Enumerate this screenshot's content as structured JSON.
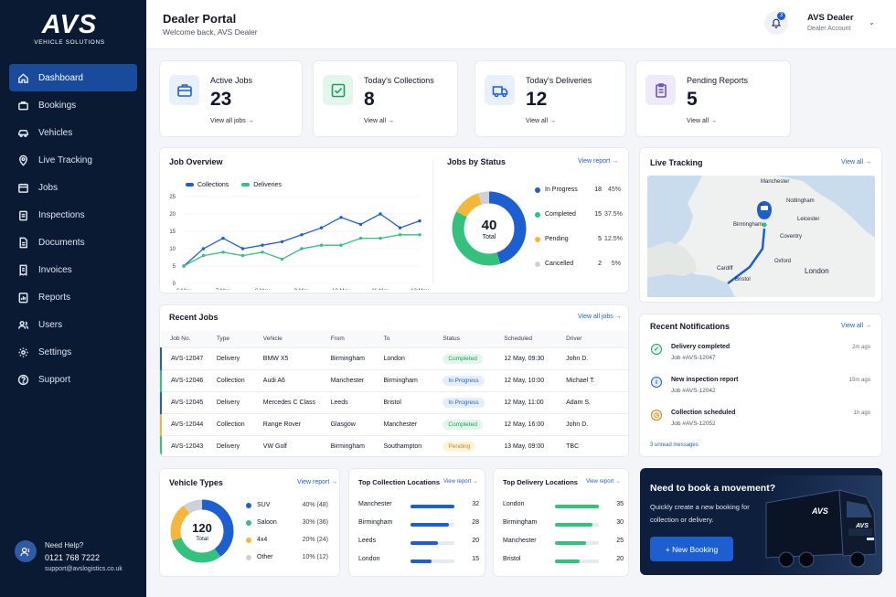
{
  "brand": {
    "logo_text": "AVS",
    "logo_sub": "VEHICLE SOLUTIONS"
  },
  "sidebar": {
    "items": [
      {
        "label": "Dashboard",
        "icon": "home-icon",
        "active": true
      },
      {
        "label": "Bookings",
        "icon": "briefcase-icon"
      },
      {
        "label": "Vehicles",
        "icon": "car-icon"
      },
      {
        "label": "Live Tracking",
        "icon": "map-pin-icon"
      },
      {
        "label": "Jobs",
        "icon": "calendar-icon"
      },
      {
        "label": "Inspections",
        "icon": "clipboard-icon"
      },
      {
        "label": "Documents",
        "icon": "document-icon"
      },
      {
        "label": "Invoices",
        "icon": "invoice-icon"
      },
      {
        "label": "Reports",
        "icon": "report-icon"
      },
      {
        "label": "Users",
        "icon": "users-icon"
      },
      {
        "label": "Settings",
        "icon": "gear-icon"
      },
      {
        "label": "Support",
        "icon": "help-circle-icon"
      }
    ],
    "help": {
      "title": "Need Help?",
      "phone": "0121 768 7222",
      "email": "support@avslogistics.co.uk"
    }
  },
  "header": {
    "title": "Dealer Portal",
    "subtitle": "Welcome back, AVS Dealer",
    "notifications": "3",
    "user_name": "AVS Dealer",
    "user_role": "Dealer Account"
  },
  "kpis": [
    {
      "label": "Active Jobs",
      "value": "23",
      "link": "View all jobs",
      "icon": "briefcase-icon",
      "bg": "#e8f0fc",
      "color": "#1d5fd0"
    },
    {
      "label": "Today's Collections",
      "value": "8",
      "link": "View all",
      "icon": "checkbox-icon",
      "bg": "#e3f6ec",
      "color": "#1f9d5a"
    },
    {
      "label": "Today's Deliveries",
      "value": "12",
      "link": "View all",
      "icon": "truck-icon",
      "bg": "#e8f0fc",
      "color": "#1d5fd0"
    },
    {
      "label": "Pending Reports",
      "value": "5",
      "link": "View all",
      "icon": "clipboard-icon",
      "bg": "#efeaf9",
      "color": "#6b4fc2"
    }
  ],
  "job_overview": {
    "title": "Job Overview",
    "chart_data": {
      "type": "line",
      "x": [
        "6 May",
        "",
        "7 May",
        "",
        "8 May",
        "",
        "9 May",
        "",
        "10 May",
        "",
        "11 May",
        "",
        "12 May"
      ],
      "ylim": [
        0,
        25
      ],
      "yticks": [
        0,
        5,
        10,
        15,
        20,
        25
      ],
      "series": [
        {
          "name": "Collections",
          "color": "#1d5fd0",
          "values": [
            5,
            10,
            13,
            10,
            11,
            12,
            14,
            16,
            19,
            17,
            20,
            16,
            18
          ]
        },
        {
          "name": "Deliveries",
          "color": "#34c17b",
          "values": [
            5,
            8,
            9,
            8,
            9,
            7,
            10,
            11,
            11,
            13,
            13,
            14,
            14
          ]
        }
      ]
    }
  },
  "jobs_by_status": {
    "title": "Jobs by Status",
    "link": "View report",
    "total": "40",
    "total_label": "Total",
    "chart_data": {
      "type": "pie",
      "categories": [
        "In Progress",
        "Completed",
        "Pending",
        "Cancelled"
      ],
      "values": [
        18,
        15,
        5,
        2
      ],
      "percent": [
        "45%",
        "37.5%",
        "12.5%",
        "5%"
      ],
      "colors": [
        "#1d5fd0",
        "#34c17b",
        "#f4b73b",
        "#cdd2da"
      ]
    }
  },
  "live_tracking": {
    "title": "Live Tracking",
    "link": "View all",
    "places": [
      "Manchester",
      "Nottingham",
      "Birmingham",
      "Leicester",
      "Coventry",
      "Oxford",
      "Cardiff",
      "Bristol",
      "London"
    ]
  },
  "recent_jobs": {
    "title": "Recent Jobs",
    "link": "View all jobs",
    "columns": [
      "Job No.",
      "Type",
      "Vehicle",
      "From",
      "To",
      "Status",
      "Scheduled",
      "Driver"
    ],
    "rows": [
      {
        "job": "AVS-12047",
        "type": "Delivery",
        "vehicle": "BMW X5",
        "from": "Birmingham",
        "to": "London",
        "status": "Completed",
        "scheduled": "12 May, 09:30",
        "driver": "John D.",
        "accent": "#1d5fd0"
      },
      {
        "job": "AVS-12046",
        "type": "Collection",
        "vehicle": "Audi A6",
        "from": "Manchester",
        "to": "Birmingham",
        "status": "In Progress",
        "scheduled": "12 May, 10:00",
        "driver": "Michael T.",
        "accent": "#34c17b"
      },
      {
        "job": "AVS-12045",
        "type": "Delivery",
        "vehicle": "Mercedes C Class",
        "from": "Leeds",
        "to": "Bristol",
        "status": "In Progress",
        "scheduled": "12 May, 11:00",
        "driver": "Adam S.",
        "accent": "#1d5fd0"
      },
      {
        "job": "AVS-12044",
        "type": "Collection",
        "vehicle": "Range Rover",
        "from": "Glasgow",
        "to": "Manchester",
        "status": "Completed",
        "scheduled": "12 May, 16:00",
        "driver": "John D.",
        "accent": "#f4b73b"
      },
      {
        "job": "AVS-12043",
        "type": "Delivery",
        "vehicle": "VW Golf",
        "from": "Birmingham",
        "to": "Southampton",
        "status": "Pending",
        "scheduled": "13 May, 09:00",
        "driver": "TBC",
        "accent": "#34c17b"
      }
    ]
  },
  "notifications": {
    "title": "Recent Notifications",
    "link": "View all",
    "items": [
      {
        "title": "Delivery completed",
        "sub": "Job #AVS-12047",
        "time": "2m ago",
        "icon": "check-circle-icon",
        "color": "#1f9d5a",
        "bg": "#e3f6ec"
      },
      {
        "title": "New inspection report",
        "sub": "Job #AVS-12042",
        "time": "15m ago",
        "icon": "info-icon",
        "color": "#1d5fd0",
        "bg": "#e5eefc"
      },
      {
        "title": "Collection scheduled",
        "sub": "Job #AVS-12052",
        "time": "1h ago",
        "icon": "clock-icon",
        "color": "#c98712",
        "bg": "#fdf2dc"
      }
    ],
    "footer": "3 unread messages"
  },
  "vehicle_types": {
    "title": "Vehicle Types",
    "link": "View report",
    "total": "120",
    "total_label": "Total",
    "chart_data": {
      "type": "pie",
      "categories": [
        "SUV",
        "Saloon",
        "4x4",
        "Other"
      ],
      "values": [
        48,
        36,
        24,
        12
      ],
      "labels": [
        "40% (48)",
        "30% (36)",
        "20% (24)",
        "10% (12)"
      ],
      "colors": [
        "#1d5fd0",
        "#34c17b",
        "#f4b73b",
        "#cdd2da"
      ]
    }
  },
  "top_collections": {
    "title": "Top Collection Locations",
    "link": "View report",
    "color": "#1d5fd0",
    "chart_data": {
      "type": "bar",
      "categories": [
        "Manchester",
        "Birmingham",
        "Leeds",
        "London"
      ],
      "values": [
        32,
        28,
        20,
        15
      ],
      "max": 32
    }
  },
  "top_deliveries": {
    "title": "Top Delivery Locations",
    "link": "View report",
    "color": "#34c17b",
    "chart_data": {
      "type": "bar",
      "categories": [
        "London",
        "Birmingham",
        "Manchester",
        "Bristol"
      ],
      "values": [
        35,
        30,
        25,
        20
      ],
      "max": 35
    }
  },
  "cta": {
    "title": "Need to book a movement?",
    "subtitle": "Quickly create a new booking for collection or delivery.",
    "button": "+ New Booking",
    "truck_text": "AVS"
  }
}
